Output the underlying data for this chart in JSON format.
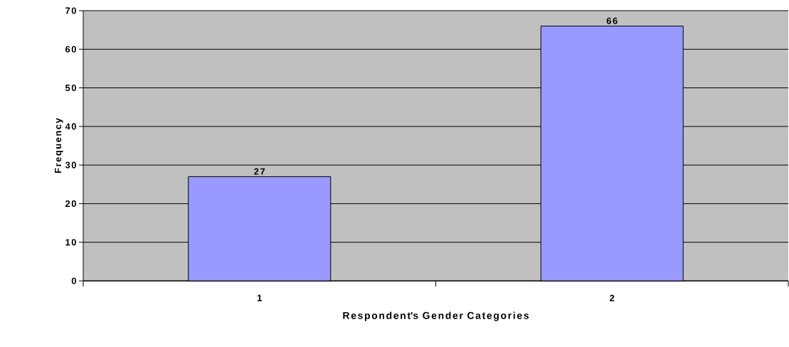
{
  "chart_data": {
    "type": "bar",
    "xlabel": "Respondent's Gender Categories",
    "ylabel": "Frequency",
    "categories": [
      "1",
      "2"
    ],
    "values": [
      27,
      66
    ],
    "color": "#9999ff",
    "ylim": [
      0,
      70
    ],
    "yticks": [
      0,
      10,
      20,
      30,
      40,
      50,
      60,
      70
    ],
    "grid": "y",
    "data_labels": true
  }
}
